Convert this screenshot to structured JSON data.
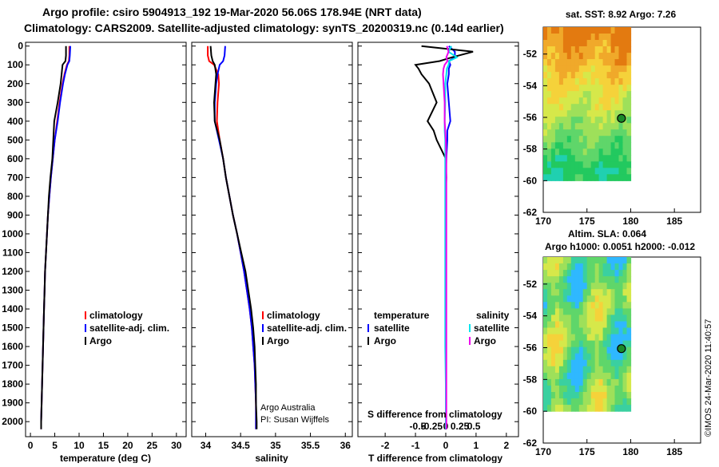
{
  "title": {
    "line1": "Argo profile: csiro 5904913_192 19-Mar-2020 56.06S 178.94E (NRT data)",
    "line2": "Climatology: CARS2009. Satellite-adjusted climatology: synTS_20200319.nc (0.14d earlier)"
  },
  "depth_ticks": [
    "0",
    "100",
    "200",
    "300",
    "400",
    "500",
    "600",
    "700",
    "800",
    "900",
    "1000",
    "1100",
    "1200",
    "1300",
    "1400",
    "1500",
    "1600",
    "1700",
    "1800",
    "1900",
    "2000"
  ],
  "colors": {
    "climatology": "#ff0000",
    "satellite": "#0000ff",
    "argo": "#000000",
    "sal_sat": "#00e5ee",
    "sal_argo": "#ee00ee"
  },
  "chart_data": [
    {
      "type": "line",
      "title": "",
      "xlabel": "temperature (deg C)",
      "ylabel": "depth",
      "xlim": [
        -1,
        32
      ],
      "ylim": [
        2080,
        -20
      ],
      "x_ticks": [
        "0",
        "5",
        "10",
        "15",
        "20",
        "25",
        "30"
      ],
      "x_tick_values": [
        0,
        5,
        10,
        15,
        20,
        25,
        30
      ],
      "legend": [
        "climatology",
        "satellite-adj. clim.",
        "Argo"
      ],
      "depth": [
        0,
        50,
        80,
        100,
        150,
        200,
        300,
        400,
        500,
        600,
        700,
        800,
        900,
        1000,
        1100,
        1200,
        1300,
        1400,
        1500,
        1600,
        1700,
        1800,
        1900,
        2000,
        2040
      ],
      "series": [
        {
          "name": "climatology",
          "values": [
            8.0,
            8.0,
            7.9,
            7.5,
            7.0,
            6.6,
            6.0,
            5.5,
            5.0,
            4.6,
            4.2,
            3.9,
            3.6,
            3.4,
            3.2,
            3.0,
            2.9,
            2.8,
            2.7,
            2.6,
            2.5,
            2.4,
            2.3,
            2.2,
            2.2
          ]
        },
        {
          "name": "satellite-adj. clim.",
          "values": [
            8.2,
            8.1,
            8.0,
            7.6,
            7.1,
            6.7,
            6.1,
            5.6,
            5.0,
            4.6,
            4.2,
            3.9,
            3.6,
            3.4,
            3.2,
            3.0,
            2.9,
            2.8,
            2.7,
            2.6,
            2.5,
            2.4,
            2.3,
            2.2,
            2.2
          ]
        },
        {
          "name": "Argo",
          "values": [
            7.3,
            7.3,
            7.2,
            6.6,
            6.4,
            6.2,
            5.6,
            4.9,
            4.7,
            4.5,
            4.1,
            3.8,
            3.6,
            3.4,
            3.2,
            3.0,
            2.9,
            2.8,
            2.7,
            2.6,
            2.5,
            2.4,
            2.3,
            2.2,
            2.2
          ]
        }
      ]
    },
    {
      "type": "line",
      "title": "",
      "xlabel": "salinity",
      "ylabel": "depth",
      "xlim": [
        33.8,
        36.1
      ],
      "ylim": [
        2080,
        -20
      ],
      "x_ticks": [
        "34",
        "34.5",
        "35",
        "35.5",
        "36"
      ],
      "x_tick_values": [
        34,
        34.5,
        35,
        35.5,
        36
      ],
      "legend": [
        "climatology",
        "satellite-adj. clim.",
        "Argo"
      ],
      "credit": [
        "Argo Australia",
        "PI: Susan Wijffels"
      ],
      "depth": [
        0,
        50,
        80,
        100,
        150,
        200,
        300,
        400,
        500,
        600,
        700,
        800,
        900,
        1000,
        1100,
        1200,
        1300,
        1400,
        1500,
        1600,
        1700,
        1800,
        1900,
        2000,
        2040
      ],
      "series": [
        {
          "name": "climatology",
          "values": [
            34.03,
            34.03,
            34.05,
            34.12,
            34.18,
            34.19,
            34.17,
            34.16,
            34.2,
            34.25,
            34.29,
            34.34,
            34.39,
            34.45,
            34.5,
            34.55,
            34.59,
            34.63,
            34.66,
            34.68,
            34.7,
            34.71,
            34.72,
            34.72,
            34.72
          ]
        },
        {
          "name": "satellite-adj. clim.",
          "values": [
            34.28,
            34.27,
            34.25,
            34.2,
            34.17,
            34.15,
            34.13,
            34.13,
            34.19,
            34.25,
            34.29,
            34.34,
            34.39,
            34.45,
            34.5,
            34.55,
            34.59,
            34.63,
            34.66,
            34.68,
            34.7,
            34.71,
            34.72,
            34.72,
            34.72
          ]
        },
        {
          "name": "Argo",
          "values": [
            34.07,
            34.08,
            34.1,
            34.13,
            34.15,
            34.14,
            34.12,
            34.13,
            34.2,
            34.25,
            34.29,
            34.34,
            34.39,
            34.45,
            34.51,
            34.57,
            34.61,
            34.65,
            34.68,
            34.7,
            34.71,
            34.72,
            34.72,
            34.73,
            34.73
          ]
        }
      ]
    },
    {
      "type": "line",
      "title": "",
      "xlabel": "T difference from climatology",
      "ylabel": "depth",
      "xlim": [
        -2.9,
        2.4
      ],
      "ylim": [
        2080,
        -20
      ],
      "x_ticks": [
        "-2",
        "-1",
        "0",
        "1",
        "2"
      ],
      "x_tick_values": [
        -2,
        -1,
        0,
        1,
        2
      ],
      "x2label": "S difference from climatology",
      "x2_ticks": [
        "-0.5",
        "-0.25",
        "0",
        "0.25",
        "0.5"
      ],
      "x2_tick_values": [
        -0.5,
        -0.25,
        0,
        0.25,
        0.5
      ],
      "x2_scale": 0.25,
      "legend_temperature_head": "temperature",
      "legend_salinity_head": "salinity",
      "legend": [
        "satellite",
        "Argo",
        "satellite",
        "Argo"
      ],
      "depth": [
        0,
        30,
        60,
        80,
        100,
        120,
        150,
        200,
        300,
        400,
        450,
        500,
        600,
        700,
        800,
        1000,
        1200,
        1400,
        1600,
        1800,
        2000,
        2040
      ],
      "series": [
        {
          "name": "T satellite",
          "values": [
            0.1,
            0.3,
            0.3,
            0.1,
            0.15,
            0.1,
            0.1,
            0.05,
            0.1,
            0.15,
            0.05,
            0.05,
            0.02,
            0.0,
            0.0,
            0.0,
            0.0,
            0.0,
            0.0,
            0.0,
            0.0,
            0.0
          ]
        },
        {
          "name": "T Argo",
          "values": [
            -0.8,
            0.9,
            0.2,
            -0.2,
            -1.0,
            -0.9,
            -0.8,
            -0.55,
            -0.3,
            -0.6,
            -0.4,
            -0.3,
            0.0,
            0.02,
            0.0,
            0.0,
            0.0,
            0.0,
            0.0,
            0.0,
            0.0,
            0.0
          ]
        },
        {
          "name": "S satellite",
          "values": [
            0.1,
            0.05,
            0.2,
            0.06,
            0.05,
            0.02,
            0.01,
            -0.01,
            -0.01,
            -0.02,
            -0.02,
            -0.01,
            -0.01,
            -0.01,
            -0.01,
            -0.01,
            -0.01,
            -0.01,
            -0.01,
            0.0,
            0.0,
            0.0
          ]
        },
        {
          "name": "S Argo",
          "values": [
            0.02,
            0.05,
            0.01,
            0.03,
            -0.02,
            -0.04,
            -0.05,
            -0.04,
            -0.02,
            -0.02,
            -0.01,
            0.0,
            0.01,
            0.01,
            0.01,
            0.01,
            0.01,
            0.01,
            0.01,
            0.01,
            0.01,
            0.01
          ]
        }
      ]
    },
    {
      "type": "heatmap",
      "title": "sat. SST: 8.92 Argo: 7.26",
      "x_ticks": [
        "170",
        "175",
        "180",
        "185"
      ],
      "x_tick_values": [
        170,
        175,
        180,
        185
      ],
      "y_ticks": [
        "-52",
        "-54",
        "-56",
        "-58",
        "-60",
        "-62"
      ],
      "y_tick_values": [
        -52,
        -54,
        -56,
        -58,
        -60,
        -62
      ],
      "xlim": [
        170,
        188
      ],
      "ylim": [
        -62,
        -50.3
      ],
      "data_extent": {
        "lon": [
          170,
          180
        ],
        "lat": [
          -60,
          -50.3
        ]
      },
      "marker": {
        "lon": 178.94,
        "lat": -56.06
      },
      "palette": [
        "#e37a10",
        "#f0a92a",
        "#f5d23a",
        "#d6e84a",
        "#9ee05a",
        "#5fd66a",
        "#22c95f",
        "#20d0b0"
      ]
    },
    {
      "type": "heatmap",
      "title_line1": "Altim. SLA: 0.064",
      "title_line2": "Argo h1000: 0.0051 h2000: -0.012",
      "x_ticks": [
        "170",
        "175",
        "180",
        "185"
      ],
      "x_tick_values": [
        170,
        175,
        180,
        185
      ],
      "y_ticks": [
        "-52",
        "-54",
        "-56",
        "-58",
        "-60",
        "-62"
      ],
      "y_tick_values": [
        -52,
        -54,
        -56,
        -58,
        -60,
        -62
      ],
      "xlim": [
        170,
        188
      ],
      "ylim": [
        -62,
        -50.3
      ],
      "data_extent": {
        "lon": [
          170,
          180
        ],
        "lat": [
          -60,
          -50.3
        ]
      },
      "marker": {
        "lon": 178.94,
        "lat": -56.06
      },
      "palette": [
        "#2fb8ff",
        "#3ad0a0",
        "#5fd66a",
        "#9ee05a",
        "#d6e84a",
        "#f5d23a",
        "#f0a030",
        "#d86a20"
      ]
    }
  ],
  "footer": "©IMOS 24-Mar-2020 11:40:57"
}
